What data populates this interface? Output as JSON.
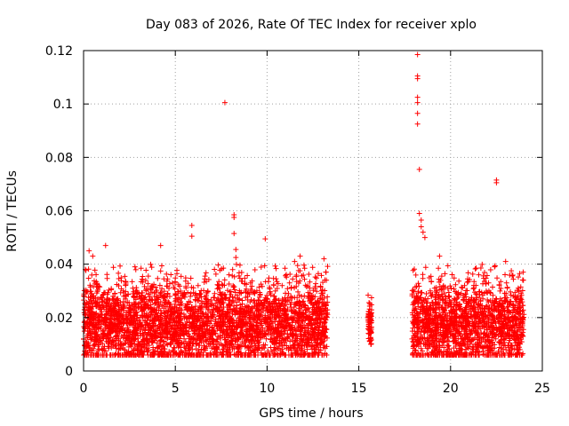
{
  "chart_data": {
    "type": "scatter",
    "title": "Day 083 of 2026, Rate Of TEC Index for receiver xplo",
    "xlabel": "GPS time / hours",
    "ylabel": "ROTI / TECUs",
    "xlim": [
      0,
      25
    ],
    "ylim": [
      0,
      0.12
    ],
    "xticks": [
      0,
      5,
      10,
      15,
      20,
      25
    ],
    "yticks": [
      0,
      0.02,
      0.04,
      0.06,
      0.08,
      0.1,
      0.12
    ],
    "xtick_labels": [
      "0",
      "5",
      "10",
      "15",
      "20",
      "25"
    ],
    "ytick_labels": [
      "0",
      "0.02",
      "0.04",
      "0.06",
      "0.08",
      "0.1",
      "0.12"
    ],
    "grid": true,
    "marker": "+",
    "color": "#ff0000",
    "series": [
      {
        "name": "ROTI",
        "segments": [
          {
            "t_start": 0.0,
            "t_end": 13.3,
            "roti_low": 0.006,
            "roti_high": 0.034,
            "roti_typical": 0.017
          },
          {
            "t_start": 15.5,
            "t_end": 15.7,
            "roti_low": 0.01,
            "roti_high": 0.027,
            "roti_typical": 0.018
          },
          {
            "t_start": 17.9,
            "t_end": 24.0,
            "roti_low": 0.006,
            "roti_high": 0.034,
            "roti_typical": 0.017
          }
        ],
        "outliers": [
          {
            "x": 0.1,
            "y": 0.038
          },
          {
            "x": 0.3,
            "y": 0.045
          },
          {
            "x": 0.5,
            "y": 0.043
          },
          {
            "x": 1.2,
            "y": 0.047
          },
          {
            "x": 2.8,
            "y": 0.039
          },
          {
            "x": 4.2,
            "y": 0.047
          },
          {
            "x": 5.9,
            "y": 0.0545
          },
          {
            "x": 5.9,
            "y": 0.0505
          },
          {
            "x": 7.7,
            "y": 0.1005
          },
          {
            "x": 8.2,
            "y": 0.0585
          },
          {
            "x": 8.2,
            "y": 0.0575
          },
          {
            "x": 8.2,
            "y": 0.0515
          },
          {
            "x": 8.3,
            "y": 0.0455
          },
          {
            "x": 8.3,
            "y": 0.0425
          },
          {
            "x": 9.9,
            "y": 0.0495
          },
          {
            "x": 11.5,
            "y": 0.041
          },
          {
            "x": 11.8,
            "y": 0.043
          },
          {
            "x": 13.1,
            "y": 0.042
          },
          {
            "x": 18.2,
            "y": 0.1185
          },
          {
            "x": 18.2,
            "y": 0.1105
          },
          {
            "x": 18.2,
            "y": 0.1095
          },
          {
            "x": 18.2,
            "y": 0.1025
          },
          {
            "x": 18.2,
            "y": 0.1005
          },
          {
            "x": 18.2,
            "y": 0.0965
          },
          {
            "x": 18.2,
            "y": 0.0925
          },
          {
            "x": 18.3,
            "y": 0.0755
          },
          {
            "x": 18.3,
            "y": 0.059
          },
          {
            "x": 18.4,
            "y": 0.0565
          },
          {
            "x": 18.4,
            "y": 0.054
          },
          {
            "x": 18.5,
            "y": 0.052
          },
          {
            "x": 18.6,
            "y": 0.05
          },
          {
            "x": 19.4,
            "y": 0.043
          },
          {
            "x": 22.5,
            "y": 0.0715
          },
          {
            "x": 22.5,
            "y": 0.0705
          },
          {
            "x": 22.4,
            "y": 0.039
          },
          {
            "x": 23.0,
            "y": 0.041
          }
        ]
      }
    ]
  }
}
